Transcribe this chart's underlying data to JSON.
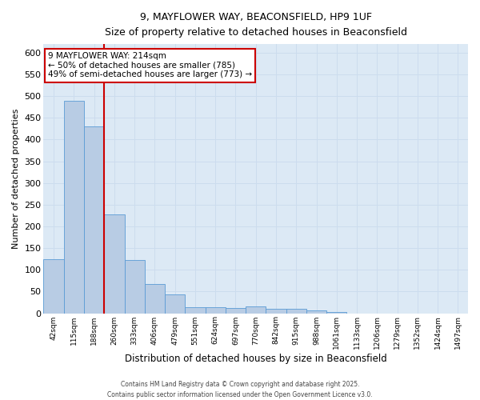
{
  "title_line1": "9, MAYFLOWER WAY, BEACONSFIELD, HP9 1UF",
  "title_line2": "Size of property relative to detached houses in Beaconsfield",
  "xlabel": "Distribution of detached houses by size in Beaconsfield",
  "ylabel": "Number of detached properties",
  "bar_labels": [
    "42sqm",
    "115sqm",
    "188sqm",
    "260sqm",
    "333sqm",
    "406sqm",
    "479sqm",
    "551sqm",
    "624sqm",
    "697sqm",
    "770sqm",
    "842sqm",
    "915sqm",
    "988sqm",
    "1061sqm",
    "1133sqm",
    "1206sqm",
    "1279sqm",
    "1352sqm",
    "1424sqm",
    "1497sqm"
  ],
  "bar_values": [
    125,
    490,
    430,
    228,
    122,
    68,
    43,
    14,
    14,
    12,
    15,
    11,
    10,
    6,
    2,
    0,
    0,
    0,
    0,
    0,
    0
  ],
  "bar_color": "#b8cce4",
  "bar_edge_color": "#5b9bd5",
  "vline_color": "#cc0000",
  "vline_x": 2.5,
  "annotation_text": "9 MAYFLOWER WAY: 214sqm\n← 50% of detached houses are smaller (785)\n49% of semi-detached houses are larger (773) →",
  "annotation_box_edgecolor": "#cc0000",
  "grid_color": "#ccdcee",
  "background_color": "#dce9f5",
  "ylim": [
    0,
    620
  ],
  "yticks": [
    0,
    50,
    100,
    150,
    200,
    250,
    300,
    350,
    400,
    450,
    500,
    550,
    600
  ],
  "footer_line1": "Contains HM Land Registry data © Crown copyright and database right 2025.",
  "footer_line2": "Contains public sector information licensed under the Open Government Licence v3.0."
}
